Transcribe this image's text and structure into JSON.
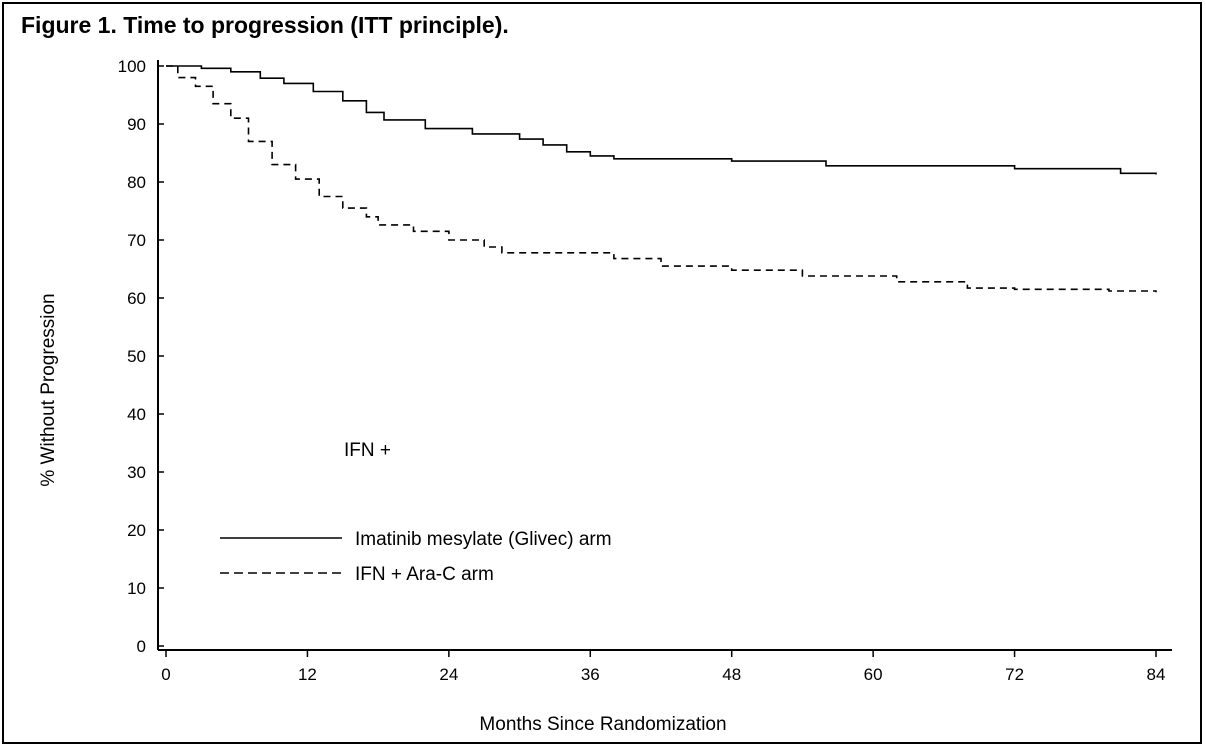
{
  "chart_data": {
    "type": "line",
    "title": "Figure 1. Time to progression (ITT principle).",
    "xlabel": "Months Since Randomization",
    "ylabel": "% Without Progression",
    "xlim": [
      0,
      84
    ],
    "ylim": [
      0,
      100
    ],
    "xticks": [
      "0",
      "12",
      "24",
      "36",
      "48",
      "60",
      "72",
      "84"
    ],
    "yticks": [
      "0",
      "10",
      "20",
      "30",
      "40",
      "50",
      "60",
      "70",
      "80",
      "90",
      "100"
    ],
    "grid": false,
    "legend_position": "bottom-left",
    "annotation": "IFN +",
    "series": [
      {
        "name": "Imatinib mesylate (Glivec) arm",
        "style": "solid",
        "color": "#000000",
        "x": [
          0,
          1,
          3,
          5.5,
          8,
          10,
          12.5,
          15,
          17,
          18.5,
          22,
          26,
          30,
          32,
          34,
          36,
          38,
          48,
          56,
          60,
          72,
          81,
          84
        ],
        "y": [
          100,
          100,
          99.6,
          99,
          97.9,
          97,
          95.6,
          94,
          92,
          90.7,
          89.2,
          88.3,
          87.4,
          86.4,
          85.2,
          84.5,
          84,
          83.6,
          82.8,
          82.8,
          82.3,
          81.5,
          81.3
        ]
      },
      {
        "name": "IFN + Ara-C arm",
        "style": "dashed",
        "color": "#000000",
        "x": [
          0,
          1,
          2.5,
          4,
          5.5,
          7,
          9,
          11,
          13,
          15,
          17,
          18,
          21,
          24,
          27,
          28.5,
          33,
          36,
          38,
          42,
          48,
          54,
          60,
          62,
          68,
          72,
          80,
          84
        ],
        "y": [
          100,
          98,
          96.5,
          93.5,
          91,
          87,
          83,
          80.5,
          77.5,
          75.5,
          74,
          72.6,
          71.5,
          70,
          68.8,
          67.8,
          67.8,
          67.8,
          66.8,
          65.5,
          64.8,
          63.8,
          63.8,
          62.8,
          61.7,
          61.5,
          61.2,
          61
        ]
      }
    ]
  }
}
